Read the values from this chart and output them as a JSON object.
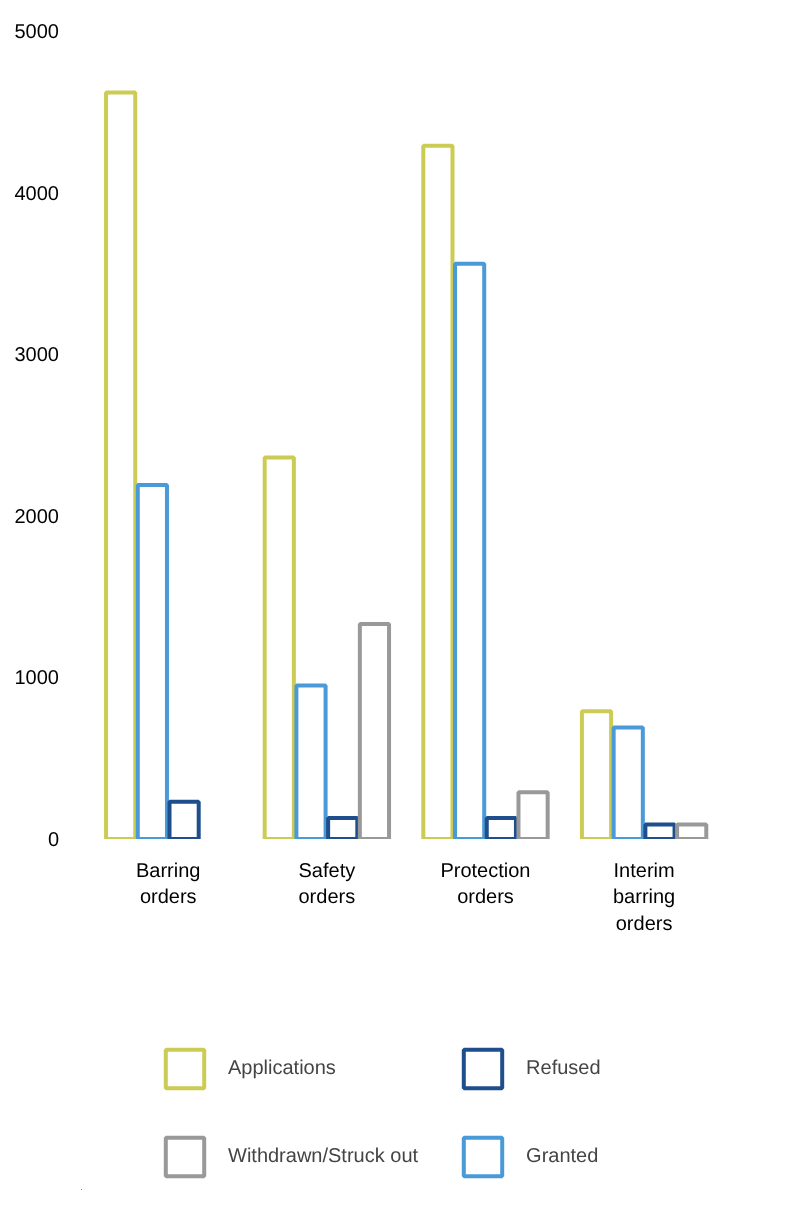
{
  "chart_data": {
    "type": "bar",
    "categories": [
      "Barring orders",
      "Safety orders",
      "Protection orders",
      "Interim barring orders"
    ],
    "series": [
      {
        "name": "Applications",
        "color": "#cccc55",
        "values": [
          4620,
          2360,
          4290,
          790
        ]
      },
      {
        "name": "Granted",
        "color": "#4a9ad8",
        "values": [
          2190,
          950,
          3560,
          690
        ]
      },
      {
        "name": "Refused",
        "color": "#1f4e8c",
        "values": [
          230,
          130,
          130,
          90
        ]
      },
      {
        "name": "Withdrawn/Struck out",
        "color": "#999999",
        "values": [
          null,
          1330,
          290,
          90
        ]
      }
    ],
    "ylim": [
      0,
      5000
    ],
    "yticks": [
      0,
      1000,
      2000,
      3000,
      4000,
      5000
    ],
    "grid": false,
    "legend": "bottom"
  }
}
